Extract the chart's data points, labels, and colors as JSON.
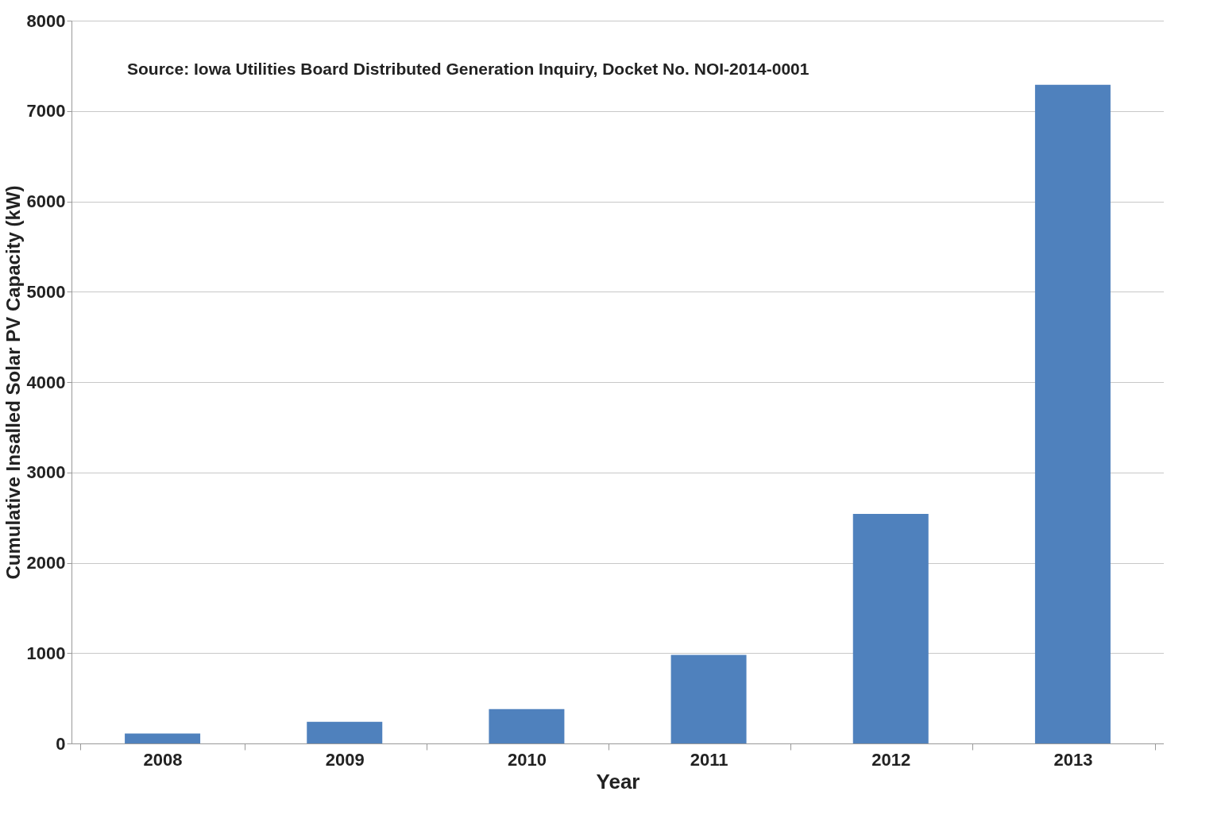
{
  "chart_data": {
    "type": "bar",
    "xlabel": "Year",
    "ylabel": "Cumulative Insalled Solar PV Capacity (kW)",
    "categories": [
      "2008",
      "2009",
      "2010",
      "2011",
      "2012",
      "2013"
    ],
    "values": [
      110,
      240,
      380,
      980,
      2540,
      7290
    ],
    "color": "#4f81bd",
    "ylim": [
      0,
      8000
    ],
    "yticks": [
      0,
      1000,
      2000,
      3000,
      4000,
      5000,
      6000,
      7000,
      8000
    ],
    "grid": "y",
    "annotations": [
      "Source: Iowa Utilities Board Distributed Generation Inquiry,   Docket No. NOI-2014-0001"
    ]
  }
}
